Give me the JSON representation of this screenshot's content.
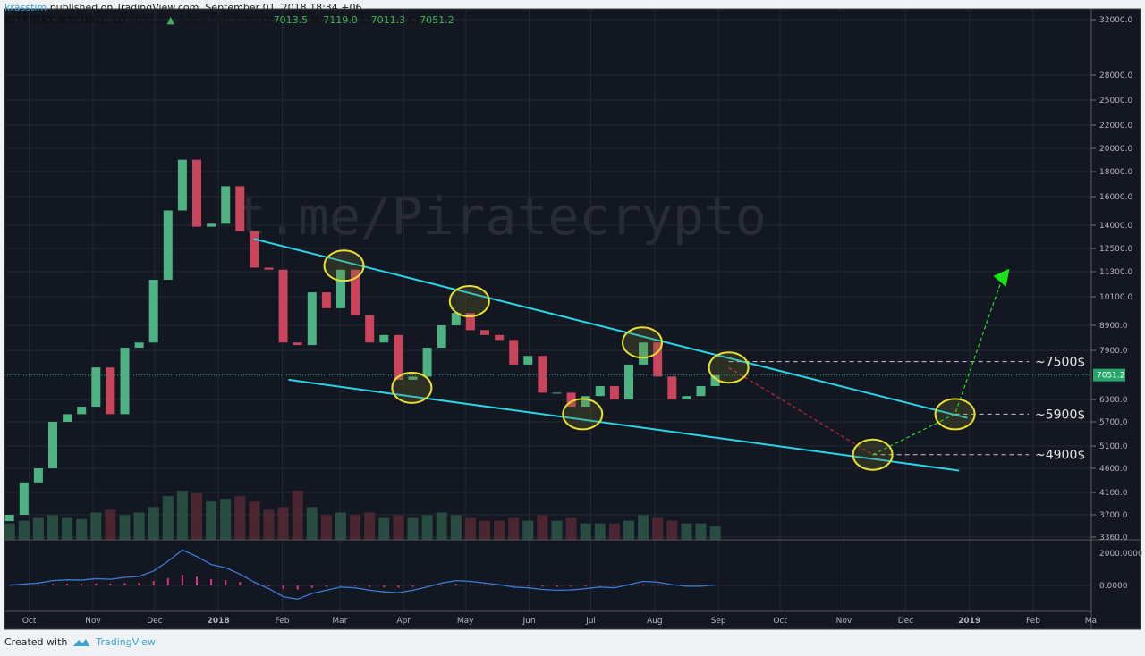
{
  "header": {
    "author": "krasstim",
    "published": "published on TradingView.com, September 01, 2018 18:34 +06",
    "symbol": "BITFINEX:BTCUSD, 1D",
    "last": "7051.2",
    "change": "+36.6 (+0.52%)",
    "o_label": "O:",
    "o": "7013.5",
    "h_label": "H:",
    "h": "7119.0",
    "l_label": "L:",
    "l": "7011.3",
    "c_label": "C:",
    "c": "7051.2"
  },
  "footer": {
    "created_with": "Created with",
    "brand": "TradingView"
  },
  "watermark": "t.me/Piratecrypto",
  "colors": {
    "up": "#4fb283",
    "down": "#c8455c",
    "trendline": "#2ad4e8",
    "ellipse": "#e8e030",
    "target_arrow": "#19e619",
    "bearish_path": "#c8283c",
    "price_tag": "#26a66a",
    "background": "#131722"
  },
  "chart_data": {
    "type": "candlestick",
    "scale": "log",
    "ylim": [
      3360,
      32000
    ],
    "grid": true,
    "interval": "weekly approximation of 1D candles",
    "week_start": [
      "2017-09-18"
    ],
    "close": [
      3700,
      4300,
      4600,
      5700,
      5900,
      6100,
      7300,
      5900,
      8000,
      8200,
      10900,
      15000,
      19000,
      13900,
      14100,
      16800,
      13600,
      11500,
      11400,
      8200,
      8100,
      10300,
      9600,
      11400,
      9300,
      8200,
      8500,
      6900,
      7000,
      8000,
      8900,
      9400,
      8700,
      8500,
      8300,
      7400,
      7700,
      6500,
      6500,
      6100,
      6400,
      6700,
      6300,
      7400,
      8200,
      7000,
      6300,
      6400,
      6700,
      7051.2
    ],
    "first_open": 3600,
    "volume_relative": [
      30,
      35,
      40,
      45,
      40,
      38,
      50,
      55,
      45,
      50,
      60,
      80,
      90,
      85,
      70,
      75,
      80,
      70,
      55,
      60,
      90,
      60,
      45,
      50,
      45,
      50,
      40,
      45,
      40,
      45,
      50,
      45,
      40,
      35,
      35,
      40,
      35,
      45,
      35,
      40,
      30,
      30,
      30,
      35,
      45,
      40,
      35,
      30,
      30,
      25
    ],
    "macd": [
      20,
      80,
      150,
      300,
      350,
      330,
      420,
      380,
      500,
      560,
      900,
      1500,
      2200,
      1800,
      1300,
      1100,
      700,
      200,
      -200,
      -700,
      -850,
      -500,
      -300,
      -100,
      -150,
      -300,
      -400,
      -450,
      -300,
      -100,
      150,
      300,
      250,
      150,
      50,
      -100,
      -150,
      -250,
      -300,
      -280,
      -200,
      -100,
      -150,
      50,
      250,
      200,
      50,
      -50,
      -50,
      30
    ],
    "y_ticks": [
      "32000.0",
      "28000.0",
      "25000.0",
      "22000.0",
      "20000.0",
      "18000.0",
      "16000.0",
      "14000.0",
      "12500.0",
      "11300.0",
      "10100.0",
      "8900.0",
      "7900.0",
      "6300.0",
      "5700.0",
      "5100.0",
      "4600.0",
      "4100.0",
      "3700.0",
      "3360.0"
    ],
    "last_price_tag": "7051.2",
    "macd_ticks": [
      "2000.0000",
      "0.0000"
    ],
    "x_ticks": [
      {
        "date": "2017-10-01",
        "label": "Oct"
      },
      {
        "date": "2017-11-01",
        "label": "Nov"
      },
      {
        "date": "2017-12-01",
        "label": "Dec"
      },
      {
        "date": "2018-01-01",
        "label": "2018"
      },
      {
        "date": "2018-02-01",
        "label": "Feb"
      },
      {
        "date": "2018-03-01",
        "label": "Mar"
      },
      {
        "date": "2018-04-01",
        "label": "Apr"
      },
      {
        "date": "2018-05-01",
        "label": "May"
      },
      {
        "date": "2018-06-01",
        "label": "Jun"
      },
      {
        "date": "2018-07-01",
        "label": "Jul"
      },
      {
        "date": "2018-08-01",
        "label": "Aug"
      },
      {
        "date": "2018-09-01",
        "label": "Sep"
      },
      {
        "date": "2018-10-01",
        "label": "Oct"
      },
      {
        "date": "2018-11-01",
        "label": "Nov"
      },
      {
        "date": "2018-12-01",
        "label": "Dec"
      },
      {
        "date": "2019-01-01",
        "label": "2019"
      },
      {
        "date": "2019-02-01",
        "label": "Feb"
      },
      {
        "date": "2019-03-01",
        "label": "Ma"
      }
    ],
    "drawings": {
      "trendlines": [
        {
          "from": [
            "2018-01-18",
            13100
          ],
          "to": [
            "2018-12-31",
            5800
          ]
        },
        {
          "from": [
            "2018-02-04",
            6900
          ],
          "to": [
            "2018-12-27",
            4550
          ]
        }
      ],
      "ellipses": [
        [
          "2018-03-03",
          11600
        ],
        [
          "2018-04-05",
          6650
        ],
        [
          "2018-05-03",
          9900
        ],
        [
          "2018-06-27",
          5900
        ],
        [
          "2018-07-26",
          8200
        ],
        [
          "2018-09-06",
          7300
        ],
        [
          "2018-11-15",
          4900
        ],
        [
          "2018-12-25",
          5900
        ]
      ],
      "levels": [
        {
          "price": 7500,
          "from": "2018-09-06",
          "label": "~7500$"
        },
        {
          "price": 5900,
          "from": "2018-12-25",
          "label": "~5900$"
        },
        {
          "price": 4900,
          "from": "2018-11-15",
          "label": "~4900$"
        }
      ],
      "bearish_path": [
        [
          "2018-09-06",
          7300
        ],
        [
          "2018-11-15",
          4900
        ]
      ],
      "bullish_path": [
        [
          "2018-11-15",
          4900
        ],
        [
          "2018-12-25",
          5900
        ],
        [
          "2019-01-17",
          11000
        ]
      ]
    }
  }
}
